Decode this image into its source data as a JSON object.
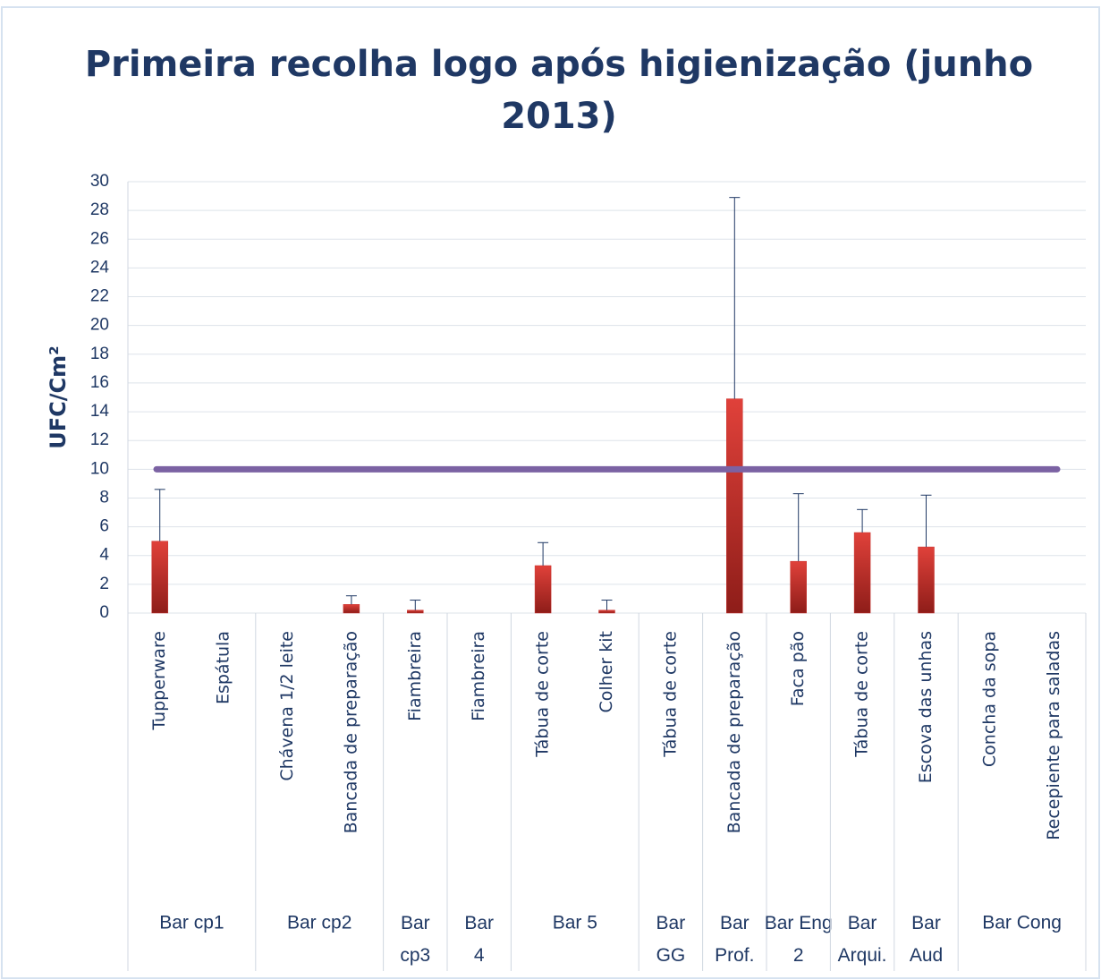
{
  "chart_data": {
    "type": "bar",
    "title": "Primeira recolha logo após higienização (junho 2013)",
    "y_label": "UFC/Cm²",
    "categories": [
      "Tupperware",
      "Espátula",
      "Chávena 1/2 leite",
      "Bancada de preparação",
      "Fiambreira",
      "Fiambreira",
      "Tábua de corte",
      "Colher kit",
      "Tábua de corte",
      "Bancada de preparação",
      "Faca pão",
      "Tábua  de corte",
      "Escova das unhas",
      "Concha da sopa",
      "Recepiente para saladas"
    ],
    "groups": [
      {
        "name": "Bar cp1",
        "size": 2
      },
      {
        "name": "Bar cp2",
        "size": 2
      },
      {
        "name": "Bar cp3",
        "size": 1
      },
      {
        "name": "Bar 4",
        "size": 1
      },
      {
        "name": "Bar 5",
        "size": 2
      },
      {
        "name": "Bar GG",
        "size": 1
      },
      {
        "name": "Bar Prof.",
        "size": 1
      },
      {
        "name": "Bar Eng 2",
        "size": 1
      },
      {
        "name": "Bar Arqui.",
        "size": 1
      },
      {
        "name": "Bar Aud",
        "size": 1
      },
      {
        "name": "Bar Cong",
        "size": 2
      }
    ],
    "values": [
      5,
      0,
      0,
      0.6,
      0.2,
      0,
      3.3,
      0.2,
      0,
      14.9,
      3.6,
      5.6,
      4.6,
      0,
      0
    ],
    "errors": [
      3.6,
      null,
      null,
      0.6,
      0.7,
      null,
      1.6,
      0.7,
      null,
      14,
      4.7,
      1.6,
      3.6,
      null,
      null
    ],
    "color": "#c9302c",
    "reference_line": 10,
    "reference_color": "#7b62a3",
    "ylim": [
      0,
      30
    ],
    "yticks": [
      0,
      2,
      4,
      6,
      8,
      10,
      12,
      14,
      16,
      18,
      20,
      22,
      24,
      26,
      28,
      30
    ],
    "grid": true
  }
}
